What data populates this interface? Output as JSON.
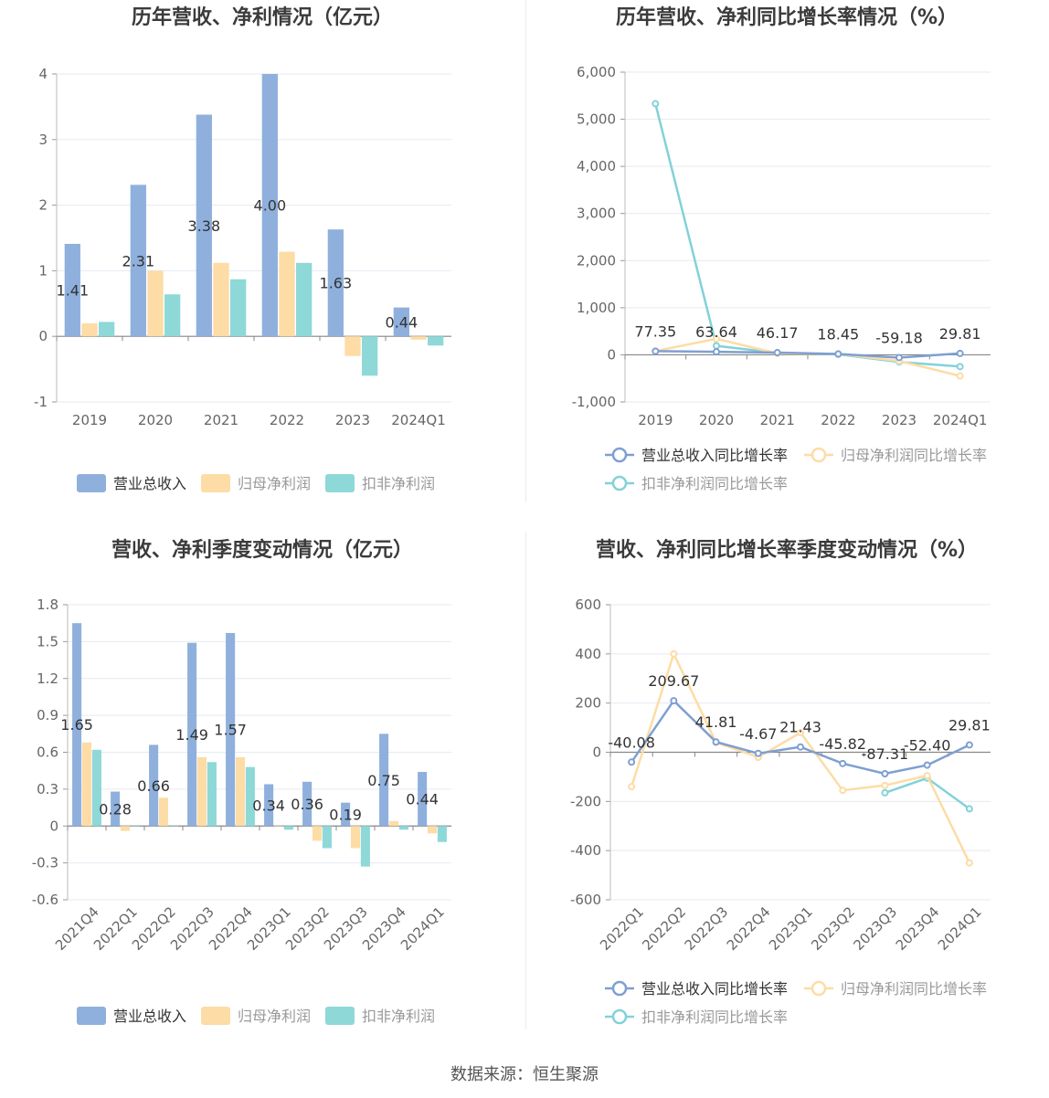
{
  "source_text": "数据来源：恒生聚源",
  "chart_data": [
    {
      "type": "bar",
      "title": "历年营收、净利情况（亿元）",
      "categories": [
        "2019",
        "2020",
        "2021",
        "2022",
        "2023",
        "2024Q1"
      ],
      "ylim": [
        -1,
        4
      ],
      "yticks": [
        "-1",
        "0",
        "1",
        "2",
        "3",
        "4"
      ],
      "ytick_values": [
        -1,
        0,
        1,
        2,
        3,
        4
      ],
      "grid": true,
      "legend_position": "bottom",
      "series": [
        {
          "name": "营业总收入",
          "color": "#8fb0dc",
          "values": [
            1.41,
            2.31,
            3.38,
            4.0,
            1.63,
            0.44
          ],
          "labels": [
            "1.41",
            "2.31",
            "3.38",
            "4.00",
            "1.63",
            "0.44"
          ]
        },
        {
          "name": "归母净利润",
          "color": "#fddca5",
          "values": [
            0.2,
            1.0,
            1.12,
            1.29,
            -0.3,
            -0.05
          ]
        },
        {
          "name": "扣非净利润",
          "color": "#8ed8d8",
          "values": [
            0.22,
            0.64,
            0.87,
            1.12,
            -0.6,
            -0.14
          ]
        }
      ]
    },
    {
      "type": "line",
      "title": "历年营收、净利同比增长率情况（%）",
      "categories": [
        "2019",
        "2020",
        "2021",
        "2022",
        "2023",
        "2024Q1"
      ],
      "ylim": [
        -1000,
        6000
      ],
      "yticks": [
        "-1,000",
        "0",
        "1,000",
        "2,000",
        "3,000",
        "4,000",
        "5,000",
        "6,000"
      ],
      "ytick_values": [
        -1000,
        0,
        1000,
        2000,
        3000,
        4000,
        5000,
        6000
      ],
      "grid": true,
      "legend_position": "bottom",
      "series": [
        {
          "name": "营业总收入同比增长率",
          "color": "#7f9fd2",
          "values": [
            77.35,
            63.64,
            46.17,
            18.45,
            -59.18,
            29.81
          ],
          "labels": [
            "77.35",
            "63.64",
            "46.17",
            "18.45",
            "-59.18",
            "29.81"
          ]
        },
        {
          "name": "归母净利润同比增长率",
          "color": "#fddca5",
          "values": [
            80,
            340,
            30,
            20,
            -130,
            -450
          ]
        },
        {
          "name": "扣非净利润同比增长率",
          "color": "#82d2d8",
          "values": [
            5330,
            190,
            40,
            10,
            -150,
            -250
          ]
        }
      ]
    },
    {
      "type": "bar",
      "title": "营收、净利季度变动情况（亿元）",
      "categories": [
        "2021Q4",
        "2022Q1",
        "2022Q2",
        "2022Q3",
        "2022Q4",
        "2023Q1",
        "2023Q2",
        "2023Q3",
        "2023Q4",
        "2024Q1"
      ],
      "ylim": [
        -0.6,
        1.8
      ],
      "yticks": [
        "-0.6",
        "-0.3",
        "0",
        "0.3",
        "0.6",
        "0.9",
        "1.2",
        "1.5",
        "1.8"
      ],
      "ytick_values": [
        -0.6,
        -0.3,
        0,
        0.3,
        0.6,
        0.9,
        1.2,
        1.5,
        1.8
      ],
      "grid": true,
      "legend_position": "bottom",
      "series": [
        {
          "name": "营业总收入",
          "color": "#8fb0dc",
          "values": [
            1.65,
            0.28,
            0.66,
            1.49,
            1.57,
            0.34,
            0.36,
            0.19,
            0.75,
            0.44
          ],
          "labels": [
            "1.65",
            "0.28",
            "0.66",
            "1.49",
            "1.57",
            "0.34",
            "0.36",
            "0.19",
            "0.75",
            "0.44"
          ]
        },
        {
          "name": "归母净利润",
          "color": "#fddca5",
          "values": [
            0.68,
            -0.04,
            0.23,
            0.56,
            0.56,
            0,
            -0.12,
            -0.18,
            0.04,
            -0.06
          ]
        },
        {
          "name": "扣非净利润",
          "color": "#8ed8d8",
          "values": [
            0.62,
            0,
            0,
            0.52,
            0.48,
            -0.03,
            -0.18,
            -0.33,
            -0.03,
            -0.13
          ]
        }
      ]
    },
    {
      "type": "line",
      "title": "营收、净利同比增长率季度变动情况（%）",
      "categories": [
        "2022Q1",
        "2022Q2",
        "2022Q3",
        "2022Q4",
        "2023Q1",
        "2023Q2",
        "2023Q3",
        "2023Q4",
        "2024Q1"
      ],
      "ylim": [
        -600,
        600
      ],
      "yticks": [
        "-600",
        "-400",
        "-200",
        "0",
        "200",
        "400",
        "600"
      ],
      "ytick_values": [
        -600,
        -400,
        -200,
        0,
        200,
        400,
        600
      ],
      "grid": true,
      "legend_position": "bottom",
      "series": [
        {
          "name": "营业总收入同比增长率",
          "color": "#7f9fd2",
          "values": [
            -40.08,
            209.67,
            41.81,
            -4.67,
            21.43,
            -45.82,
            -87.31,
            -52.4,
            29.81
          ],
          "labels": [
            "-40.08",
            "209.67",
            "41.81",
            "-4.67",
            "21.43",
            "-45.82",
            "-87.31",
            "-52.40",
            "29.81"
          ]
        },
        {
          "name": "归母净利润同比增长率",
          "color": "#fddca5",
          "values": [
            -140,
            400,
            40,
            -20,
            80,
            -155,
            -135,
            -95,
            -450
          ]
        },
        {
          "name": "扣非净利润同比增长率",
          "color": "#82d2d8",
          "values": [
            null,
            null,
            null,
            -20,
            null,
            null,
            -165,
            -105,
            -230
          ]
        }
      ]
    }
  ]
}
